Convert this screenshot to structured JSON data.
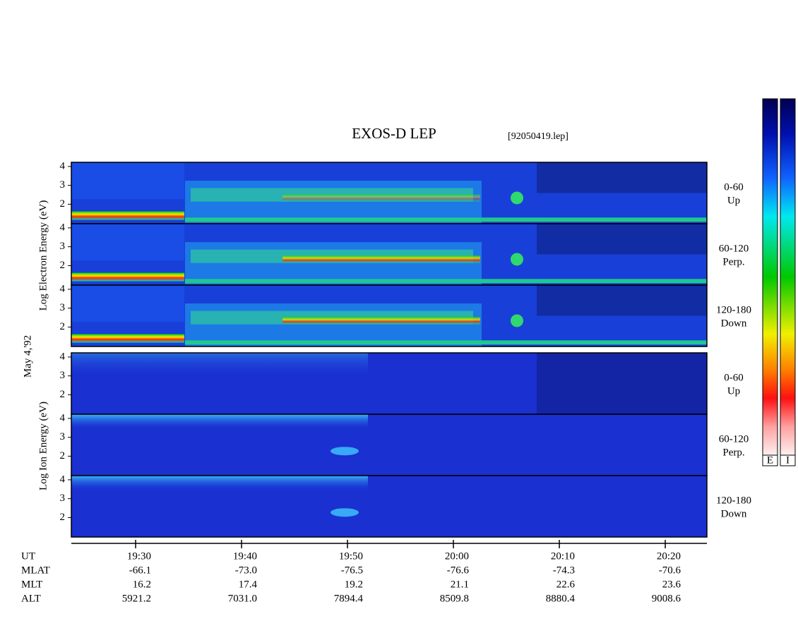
{
  "chart_data": {
    "type": "spectrogram",
    "title": "EXOS-D LEP",
    "file": "[92050419.lep]",
    "date_label": "May 4,'92",
    "ylim": [
      0.97,
      4.22
    ],
    "yticks": [
      2,
      3,
      4
    ],
    "xlim": [
      1163.93,
      1223.93
    ],
    "xticks": [
      {
        "value": 1170,
        "label": "19:30"
      },
      {
        "value": 1180,
        "label": "19:40"
      },
      {
        "value": 1190,
        "label": "19:50"
      },
      {
        "value": 1200,
        "label": "20:00"
      },
      {
        "value": 1210,
        "label": "20:10"
      },
      {
        "value": 1220,
        "label": "20:20"
      }
    ],
    "groups": [
      {
        "ylabel": "Log Electron Energy (eV)",
        "species": "E",
        "panels": [
          {
            "range": "0-60",
            "direction": "Up"
          },
          {
            "range": "60-120",
            "direction": "Perp."
          },
          {
            "range": "120-180",
            "direction": "Down"
          }
        ]
      },
      {
        "ylabel": "Log Ion Energy (eV)",
        "species": "I",
        "panels": [
          {
            "range": "0-60",
            "direction": "Up"
          },
          {
            "range": "60-120",
            "direction": "Perp."
          },
          {
            "range": "120-180",
            "direction": "Down"
          }
        ]
      }
    ],
    "ephemeris": [
      {
        "label": "UT"
      },
      {
        "label": "MLAT",
        "values": [
          "-66.1",
          "-73.0",
          "-76.5",
          "-76.6",
          "-74.3",
          "-70.6"
        ]
      },
      {
        "label": "MLT",
        "values": [
          "16.2",
          "17.4",
          "19.2",
          "21.1",
          "22.6",
          "23.6"
        ]
      },
      {
        "label": "ALT",
        "values": [
          "5921.2",
          "7031.0",
          "7894.4",
          "8509.8",
          "8880.4",
          "9008.6"
        ]
      }
    ]
  }
}
